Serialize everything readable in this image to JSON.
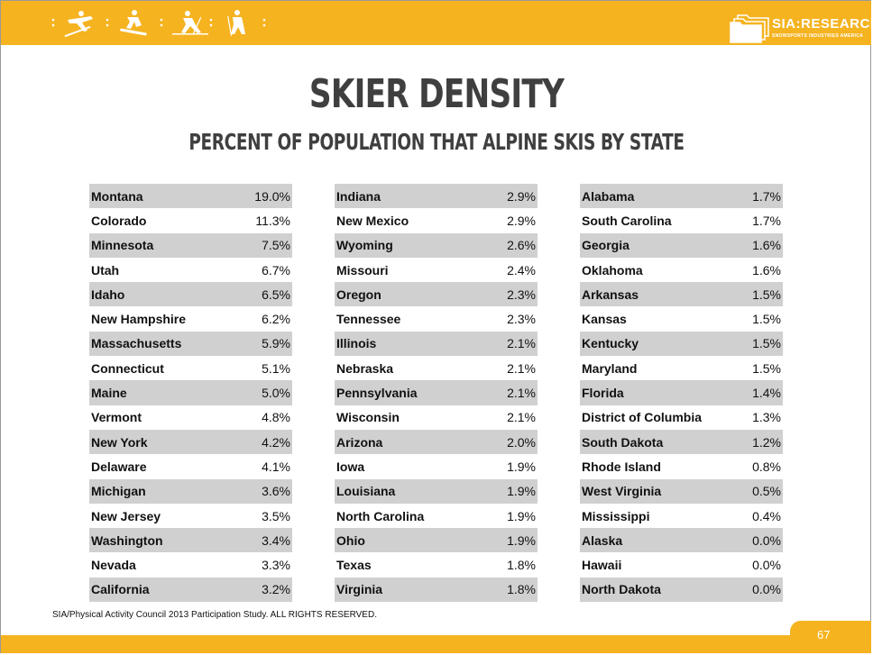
{
  "logo": {
    "text": "SIA:RESEARCH",
    "subtext": "SNOWSPORTS INDUSTRIES AMERICA"
  },
  "title": "SKIER DENSITY",
  "subtitle": "PERCENT OF POPULATION THAT ALPINE SKIS BY STATE",
  "columns": [
    [
      {
        "state": "Montana",
        "pct": "19.0%"
      },
      {
        "state": "Colorado",
        "pct": "11.3%"
      },
      {
        "state": "Minnesota",
        "pct": "7.5%"
      },
      {
        "state": "Utah",
        "pct": "6.7%"
      },
      {
        "state": "Idaho",
        "pct": "6.5%"
      },
      {
        "state": "New Hampshire",
        "pct": "6.2%"
      },
      {
        "state": "Massachusetts",
        "pct": "5.9%"
      },
      {
        "state": "Connecticut",
        "pct": "5.1%"
      },
      {
        "state": "Maine",
        "pct": "5.0%"
      },
      {
        "state": "Vermont",
        "pct": "4.8%"
      },
      {
        "state": "New York",
        "pct": "4.2%"
      },
      {
        "state": "Delaware",
        "pct": "4.1%"
      },
      {
        "state": "Michigan",
        "pct": "3.6%"
      },
      {
        "state": "New Jersey",
        "pct": "3.5%"
      },
      {
        "state": "Washington",
        "pct": "3.4%"
      },
      {
        "state": "Nevada",
        "pct": "3.3%"
      },
      {
        "state": "California",
        "pct": "3.2%"
      }
    ],
    [
      {
        "state": "Indiana",
        "pct": "2.9%"
      },
      {
        "state": "New Mexico",
        "pct": "2.9%"
      },
      {
        "state": "Wyoming",
        "pct": "2.6%"
      },
      {
        "state": "Missouri",
        "pct": "2.4%"
      },
      {
        "state": "Oregon",
        "pct": "2.3%"
      },
      {
        "state": "Tennessee",
        "pct": "2.3%"
      },
      {
        "state": "Illinois",
        "pct": "2.1%"
      },
      {
        "state": "Nebraska",
        "pct": "2.1%"
      },
      {
        "state": "Pennsylvania",
        "pct": "2.1%"
      },
      {
        "state": "Wisconsin",
        "pct": "2.1%"
      },
      {
        "state": "Arizona",
        "pct": "2.0%"
      },
      {
        "state": "Iowa",
        "pct": "1.9%"
      },
      {
        "state": "Louisiana",
        "pct": "1.9%"
      },
      {
        "state": "North Carolina",
        "pct": "1.9%"
      },
      {
        "state": "Ohio",
        "pct": "1.9%"
      },
      {
        "state": "Texas",
        "pct": "1.8%"
      },
      {
        "state": "Virginia",
        "pct": "1.8%"
      }
    ],
    [
      {
        "state": "Alabama",
        "pct": "1.7%"
      },
      {
        "state": "South Carolina",
        "pct": "1.7%"
      },
      {
        "state": "Georgia",
        "pct": "1.6%"
      },
      {
        "state": "Oklahoma",
        "pct": "1.6%"
      },
      {
        "state": "Arkansas",
        "pct": "1.5%"
      },
      {
        "state": "Kansas",
        "pct": "1.5%"
      },
      {
        "state": "Kentucky",
        "pct": "1.5%"
      },
      {
        "state": "Maryland",
        "pct": "1.5%"
      },
      {
        "state": "Florida",
        "pct": "1.4%"
      },
      {
        "state": "District of Columbia",
        "pct": "1.3%"
      },
      {
        "state": "South Dakota",
        "pct": "1.2%"
      },
      {
        "state": "Rhode Island",
        "pct": "0.8%"
      },
      {
        "state": "West Virginia",
        "pct": "0.5%"
      },
      {
        "state": "Mississippi",
        "pct": "0.4%"
      },
      {
        "state": "Alaska",
        "pct": "0.0%"
      },
      {
        "state": "Hawaii",
        "pct": "0.0%"
      },
      {
        "state": "North Dakota",
        "pct": "0.0%"
      }
    ]
  ],
  "footnote": "SIA/Physical Activity Council 2013 Participation Study. ALL RIGHTS RESERVED.",
  "page_number": "67",
  "colors": {
    "accent": "#f5b320",
    "title": "#3f3f3f",
    "row_shade": "#d0d0d0"
  },
  "icons": [
    "skier-jump-icon",
    "snowboarder-icon",
    "cross-country-skier-icon",
    "hiker-icon"
  ]
}
